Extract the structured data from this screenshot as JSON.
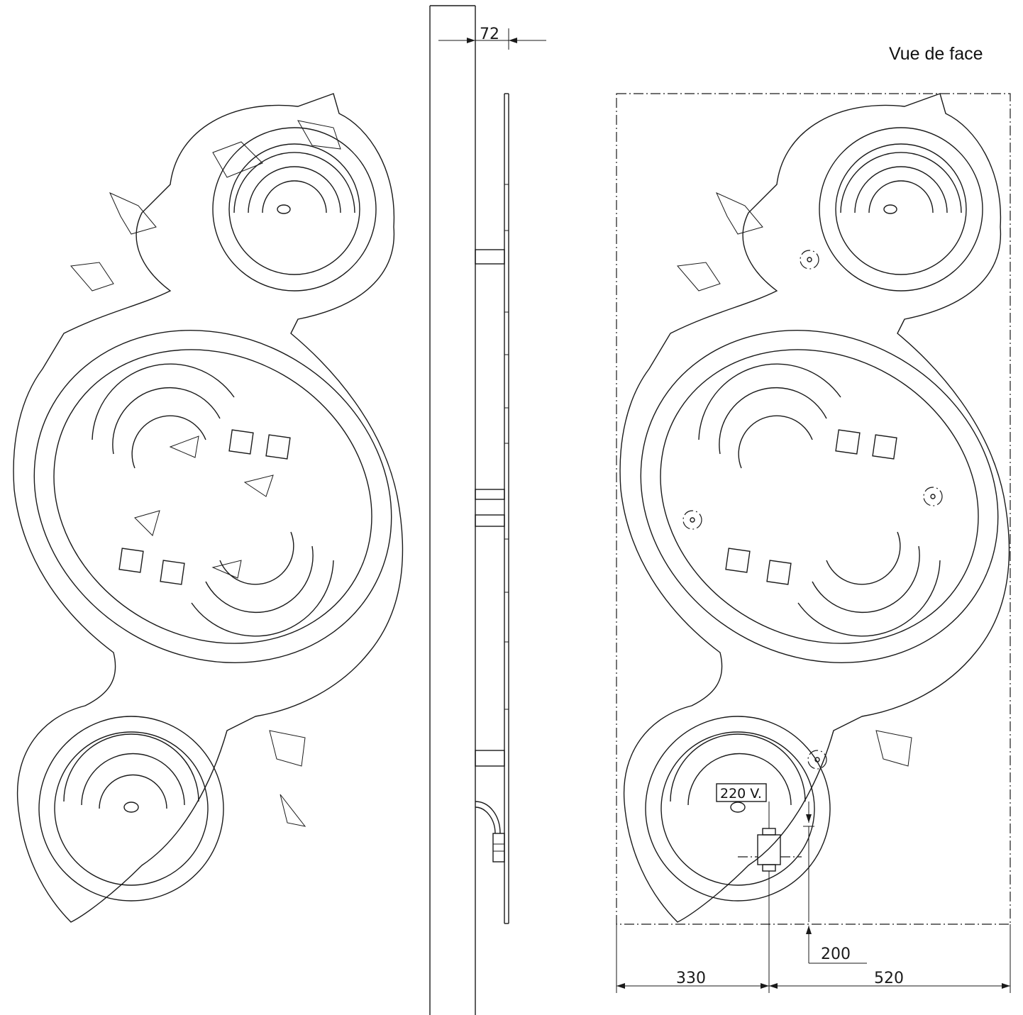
{
  "view_title": "Vue de face",
  "dimensions": {
    "depth": "72",
    "height_from_floor": "200",
    "left_offset": "330",
    "right_offset": "520"
  },
  "voltage_label": "220 V.",
  "colors": {
    "line": "#1a1a1a",
    "background": "#ffffff"
  }
}
